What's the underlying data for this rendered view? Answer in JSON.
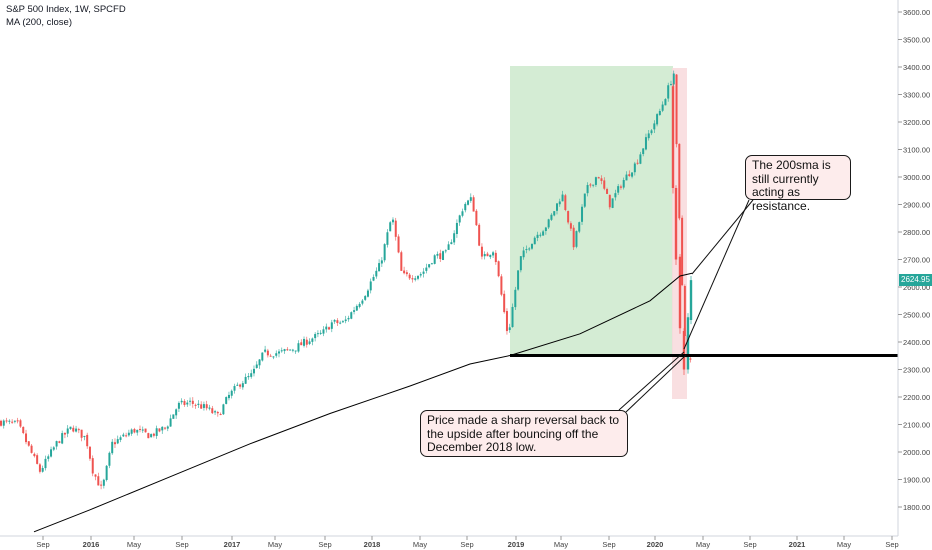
{
  "legend": {
    "symbol_line": "S&P 500 Index, 1W, SPCFD",
    "indicator_line": "MA (200, close)"
  },
  "price_axis": {
    "ticks": [
      "3600.00",
      "3500.00",
      "3400.00",
      "3300.00",
      "3200.00",
      "3100.00",
      "3000.00",
      "2900.00",
      "2800.00",
      "2700.00",
      "2600.00",
      "2500.00",
      "2400.00",
      "2300.00",
      "2200.00",
      "2100.00",
      "2000.00",
      "1900.00",
      "1800.00"
    ],
    "last_price": "2624.95",
    "last_price_color": "#26a69a"
  },
  "time_axis": {
    "ticks": [
      "Sep",
      "2016",
      "May",
      "Sep",
      "2017",
      "May",
      "Sep",
      "2018",
      "May",
      "Sep",
      "2019",
      "May",
      "Sep",
      "2020",
      "May",
      "Sep",
      "2021",
      "May",
      "Sep"
    ]
  },
  "annotations": {
    "callout_resistance": "The 200sma is still currently acting as resistance.",
    "callout_reversal": "Price made a sharp reversal back to the upside after bouncing off the December 2018 low.",
    "support_level": 2351,
    "support_line_color": "#000000",
    "green_zone_color": "#d4ecd4",
    "red_zone_color": "#f8d9dc"
  },
  "chart_data": {
    "type": "candlestick",
    "title": "S&P 500 Index, 1W, SPCFD",
    "ylim": [
      1720,
      3660
    ],
    "up_color": "#26a69a",
    "down_color": "#ef5350",
    "series": [
      {
        "name": "S&P 500 Index",
        "anchors": [
          {
            "x": "Jul 2015",
            "y": 2110
          },
          {
            "x": "Aug 2015",
            "y": 2100
          },
          {
            "x": "Sep 2015",
            "y": 1930
          },
          {
            "x": "Oct 2015",
            "y": 2040
          },
          {
            "x": "Nov 2015",
            "y": 2090
          },
          {
            "x": "Dec 2015",
            "y": 2050
          },
          {
            "x": "Jan 2016",
            "y": 1930
          },
          {
            "x": "Feb 2016",
            "y": 1860
          },
          {
            "x": "Mar 2016",
            "y": 2030
          },
          {
            "x": "Apr 2016",
            "y": 2080
          },
          {
            "x": "May 2016",
            "y": 2060
          },
          {
            "x": "Jun 2016",
            "y": 2090
          },
          {
            "x": "Jul 2016",
            "y": 2170
          },
          {
            "x": "Aug 2016",
            "y": 2180
          },
          {
            "x": "Sep 2016",
            "y": 2160
          },
          {
            "x": "Oct 2016",
            "y": 2130
          },
          {
            "x": "Nov 2016",
            "y": 2200
          },
          {
            "x": "Dec 2016",
            "y": 2250
          },
          {
            "x": "Jan 2017",
            "y": 2280
          },
          {
            "x": "Feb 2017",
            "y": 2360
          },
          {
            "x": "Mar 2017",
            "y": 2360
          },
          {
            "x": "Apr 2017",
            "y": 2380
          },
          {
            "x": "May 2017",
            "y": 2410
          },
          {
            "x": "Jun 2017",
            "y": 2430
          },
          {
            "x": "Jul 2017",
            "y": 2470
          },
          {
            "x": "Aug 2017",
            "y": 2470
          },
          {
            "x": "Sep 2017",
            "y": 2520
          },
          {
            "x": "Oct 2017",
            "y": 2570
          },
          {
            "x": "Nov 2017",
            "y": 2640
          },
          {
            "x": "Dec 2017",
            "y": 2680
          },
          {
            "x": "Jan 2018",
            "y": 2860
          },
          {
            "x": "Feb 2018",
            "y": 2640
          },
          {
            "x": "Mar 2018",
            "y": 2640
          },
          {
            "x": "Apr 2018",
            "y": 2650
          },
          {
            "x": "May 2018",
            "y": 2710
          },
          {
            "x": "Jun 2018",
            "y": 2720
          },
          {
            "x": "Jul 2018",
            "y": 2820
          },
          {
            "x": "Aug 2018",
            "y": 2900
          },
          {
            "x": "Sep 2018",
            "y": 2920
          },
          {
            "x": "Oct 2018",
            "y": 2700
          },
          {
            "x": "Nov 2018",
            "y": 2740
          },
          {
            "x": "Dec 2018",
            "y": 2420
          },
          {
            "x": "Jan 2019",
            "y": 2700
          },
          {
            "x": "Feb 2019",
            "y": 2780
          },
          {
            "x": "Mar 2019",
            "y": 2830
          },
          {
            "x": "Apr 2019",
            "y": 2940
          },
          {
            "x": "May 2019",
            "y": 2750
          },
          {
            "x": "Jun 2019",
            "y": 2950
          },
          {
            "x": "Jul 2019",
            "y": 3010
          },
          {
            "x": "Aug 2019",
            "y": 2900
          },
          {
            "x": "Sep 2019",
            "y": 2980
          },
          {
            "x": "Oct 2019",
            "y": 3050
          },
          {
            "x": "Nov 2019",
            "y": 3150
          },
          {
            "x": "Dec 2019",
            "y": 3240
          },
          {
            "x": "Jan 2020",
            "y": 3300
          },
          {
            "x": "Feb 2020",
            "y": 3380
          },
          {
            "x": "late Feb 2020",
            "y": 2950
          },
          {
            "x": "Mar 2020",
            "y": 2450
          },
          {
            "x": "late Mar 2020",
            "y": 2300
          },
          {
            "x": "Apr 2020",
            "y": 2625
          }
        ]
      },
      {
        "name": "MA (200, close)",
        "points": [
          {
            "x": "Oct 2015",
            "y": 1710
          },
          {
            "x": "Mar 2016",
            "y": 1790
          },
          {
            "x": "Sep 2016",
            "y": 1910
          },
          {
            "x": "Mar 2017",
            "y": 2030
          },
          {
            "x": "Sep 2017",
            "y": 2140
          },
          {
            "x": "Mar 2018",
            "y": 2240
          },
          {
            "x": "Sep 2018",
            "y": 2320
          },
          {
            "x": "Dec 2018",
            "y": 2351
          },
          {
            "x": "Jun 2019",
            "y": 2430
          },
          {
            "x": "Dec 2019",
            "y": 2550
          },
          {
            "x": "Mar 2020",
            "y": 2640
          },
          {
            "x": "Apr 2020",
            "y": 2650
          }
        ]
      }
    ]
  }
}
